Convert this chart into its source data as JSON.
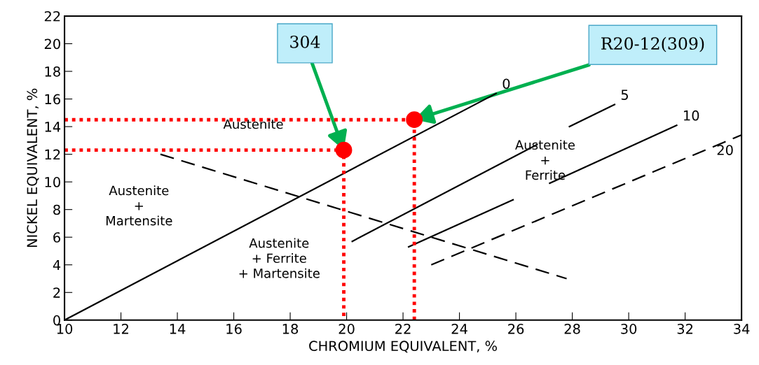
{
  "chart_data": {
    "type": "line",
    "xlabel": "CHROMIUM EQUIVALENT, %",
    "ylabel": "NICKEL EQUIVALENT, %",
    "xlim": [
      10,
      34
    ],
    "ylim": [
      0,
      22
    ],
    "xticks": [
      10,
      12,
      14,
      16,
      18,
      20,
      22,
      24,
      26,
      28,
      30,
      32,
      34
    ],
    "yticks": [
      0,
      2,
      4,
      6,
      8,
      10,
      12,
      14,
      16,
      18,
      20,
      22
    ],
    "grid": false,
    "legend": false,
    "series": [
      {
        "name": "0",
        "color": "#000000",
        "line_style": "solid",
        "x": [
          10,
          25.3
        ],
        "values": [
          0,
          16.4
        ]
      },
      {
        "name": "5",
        "color": "#000000",
        "line_style": "solid",
        "x": [
          20.2,
          26.75,
          27.3,
          27.9,
          29.5
        ],
        "values": [
          5.7,
          12.7,
          null,
          14.0,
          15.6
        ]
      },
      {
        "name": "10",
        "color": "#000000",
        "line_style": "solid",
        "x": [
          22.2,
          25.9,
          26.5,
          27.2,
          31.7
        ],
        "values": [
          5.3,
          8.7,
          null,
          9.9,
          14.1
        ]
      },
      {
        "name": "20",
        "color": "#000000",
        "line_style": "dashed",
        "x": [
          23.0,
          34
        ],
        "values": [
          4.0,
          13.4
        ]
      },
      {
        "color": "#000000",
        "line_style": "dashed",
        "x": [
          13.4,
          27.8
        ],
        "values": [
          12.0,
          3.0
        ]
      },
      {
        "color": "#ff0000",
        "line_style": "dotted",
        "x": [
          10,
          19.9,
          19.9
        ],
        "values": [
          12.3,
          12.3,
          0
        ]
      },
      {
        "color": "#ff0000",
        "line_style": "dotted",
        "x": [
          10,
          22.4,
          22.4
        ],
        "values": [
          14.5,
          14.5,
          0
        ]
      },
      {
        "type": "scatter",
        "marker": "circle",
        "color": "#ff0000",
        "x": [
          19.9,
          22.4
        ],
        "values": [
          12.3,
          14.5
        ]
      }
    ],
    "annotations": [
      {
        "text": "304",
        "x": 19.9,
        "y": 12.3
      },
      {
        "text": "R20-12(309)",
        "x": 22.4,
        "y": 14.5
      },
      "Austenite",
      "Austenite\n+\nMartensite",
      "Austenite\n+ Ferrite\n+ Martensite",
      "Austenite\n+\nFerrite"
    ]
  }
}
